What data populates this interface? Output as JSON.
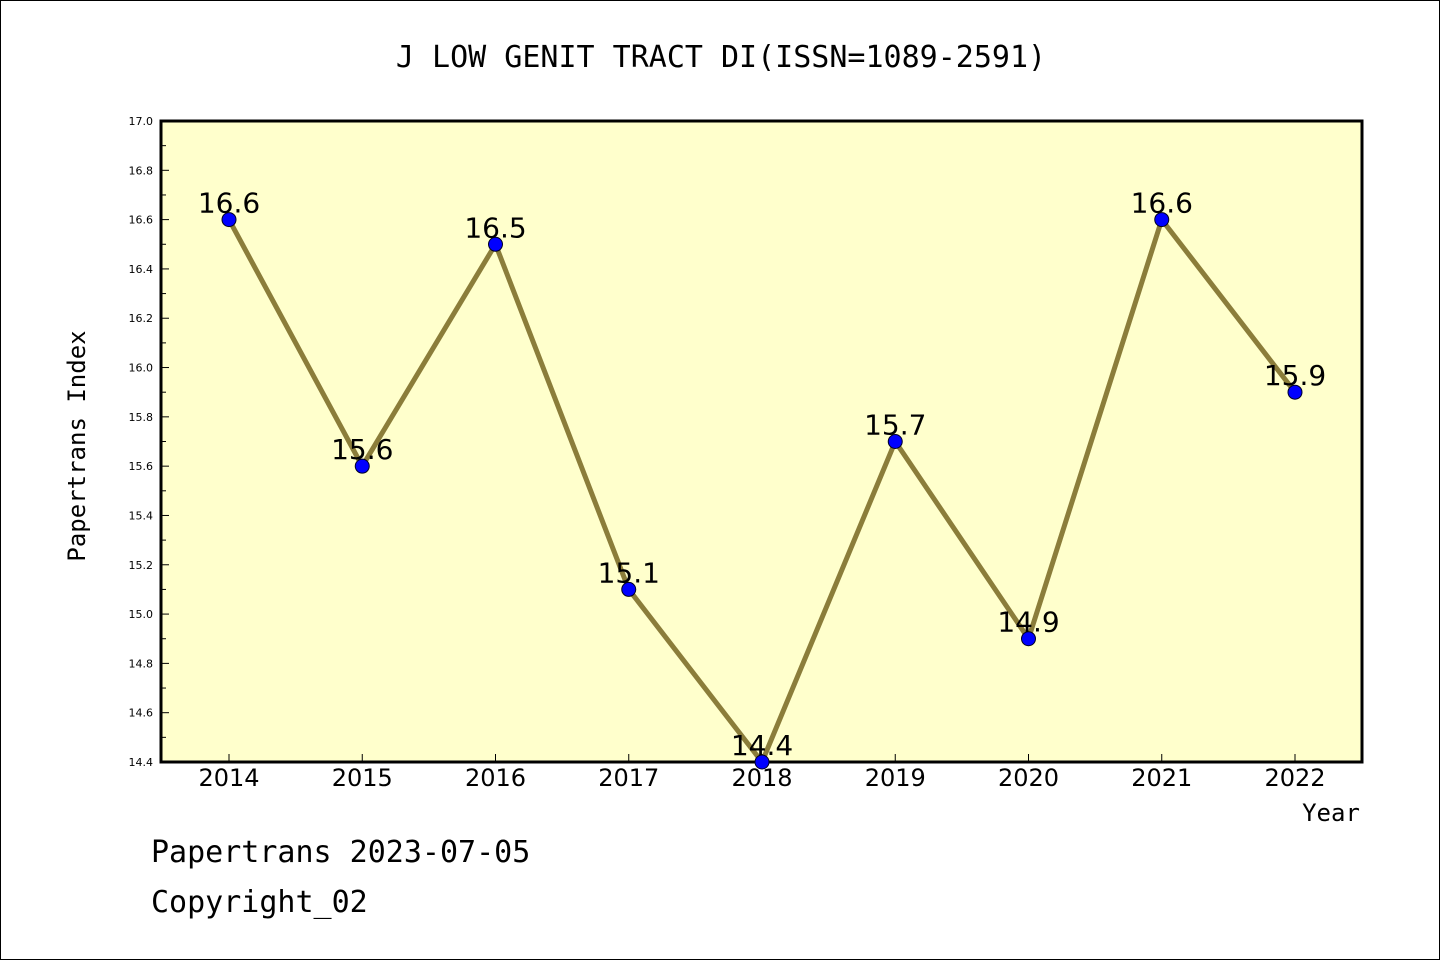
{
  "chart_data": {
    "type": "line",
    "title": "J LOW GENIT TRACT DI(ISSN=1089-2591)",
    "xlabel": "Year",
    "ylabel": "Papertrans Index",
    "x": [
      "2014",
      "2015",
      "2016",
      "2017",
      "2018",
      "2019",
      "2020",
      "2021",
      "2022"
    ],
    "values": [
      16.6,
      15.6,
      16.5,
      15.1,
      14.4,
      15.7,
      14.9,
      16.6,
      15.9
    ],
    "data_labels": [
      "16.6",
      "15.6",
      "16.5",
      "15.1",
      "14.4",
      "15.7",
      "14.9",
      "16.6",
      "15.9"
    ],
    "ylim": [
      14.4,
      17.0
    ],
    "yticks": [
      "14.4",
      "14.6",
      "14.8",
      "15.0",
      "15.2",
      "15.4",
      "15.6",
      "15.8",
      "16.0",
      "16.2",
      "16.4",
      "16.6",
      "16.8",
      "17.0"
    ],
    "grid": false,
    "colors": {
      "plot_background": "#ffffcc",
      "line": "#8b7d3a",
      "marker": "#0000ff"
    }
  },
  "footer": {
    "source": "Papertrans 2023-07-05",
    "copyright": "Copyright_02"
  }
}
